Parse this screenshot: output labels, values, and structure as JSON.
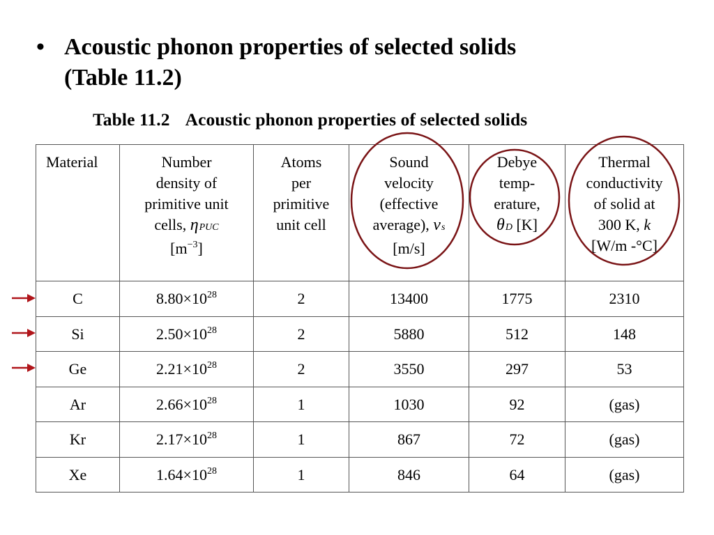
{
  "slide": {
    "bullet": "•",
    "heading_line1": "Acoustic phonon properties of selected solids",
    "heading_line2": "(Table 11.2)"
  },
  "table": {
    "caption_number": "Table 11.2",
    "caption_title": "Acoustic phonon properties of selected solids",
    "headers": {
      "material": "Material",
      "density": {
        "l1": "Number",
        "l2": "density of",
        "l3": "primitive unit",
        "l4": "cells,",
        "symbol": "η",
        "symbol_sub": "PUC",
        "unit_base": "[m",
        "unit_exp": "−3",
        "unit_close": "]"
      },
      "atoms": {
        "l1": "Atoms",
        "l2": "per",
        "l3": "primitive",
        "l4": "unit cell"
      },
      "sound": {
        "l1": "Sound",
        "l2": "velocity",
        "l3": "(effective",
        "l4": "average),",
        "symbol": "v",
        "symbol_sub": "s",
        "unit": "[m/s]"
      },
      "debye": {
        "l1": "Debye",
        "l2": "temp-",
        "l3": "erature,",
        "symbol": "θ",
        "symbol_sub": "D",
        "unit": "[K]"
      },
      "thermal": {
        "l1": "Thermal",
        "l2": "conductivity",
        "l3": "of solid at",
        "l4": "300 K,",
        "symbol": "k",
        "unit": "[W/m -°C]"
      }
    },
    "rows": [
      {
        "material": "C",
        "density_mantissa": "8.80×10",
        "density_exp": "28",
        "atoms": "2",
        "sound": "13400",
        "debye": "1775",
        "thermal": "2310"
      },
      {
        "material": "Si",
        "density_mantissa": "2.50×10",
        "density_exp": "28",
        "atoms": "2",
        "sound": "5880",
        "debye": "512",
        "thermal": "148"
      },
      {
        "material": "Ge",
        "density_mantissa": "2.21×10",
        "density_exp": "28",
        "atoms": "2",
        "sound": "3550",
        "debye": "297",
        "thermal": "53"
      },
      {
        "material": "Ar",
        "density_mantissa": "2.66×10",
        "density_exp": "28",
        "atoms": "1",
        "sound": "1030",
        "debye": "92",
        "thermal": "(gas)"
      },
      {
        "material": "Kr",
        "density_mantissa": "2.17×10",
        "density_exp": "28",
        "atoms": "1",
        "sound": "867",
        "debye": "72",
        "thermal": "(gas)"
      },
      {
        "material": "Xe",
        "density_mantissa": "1.64×10",
        "density_exp": "28",
        "atoms": "1",
        "sound": "846",
        "debye": "64",
        "thermal": "(gas)"
      }
    ]
  },
  "annotations": {
    "highlight_color": "#7a1416",
    "arrow_color": "#b0151a",
    "circled_columns": [
      "Sound velocity",
      "Debye temperature",
      "Thermal conductivity"
    ],
    "arrowed_rows": [
      "C",
      "Si",
      "Ge"
    ]
  }
}
